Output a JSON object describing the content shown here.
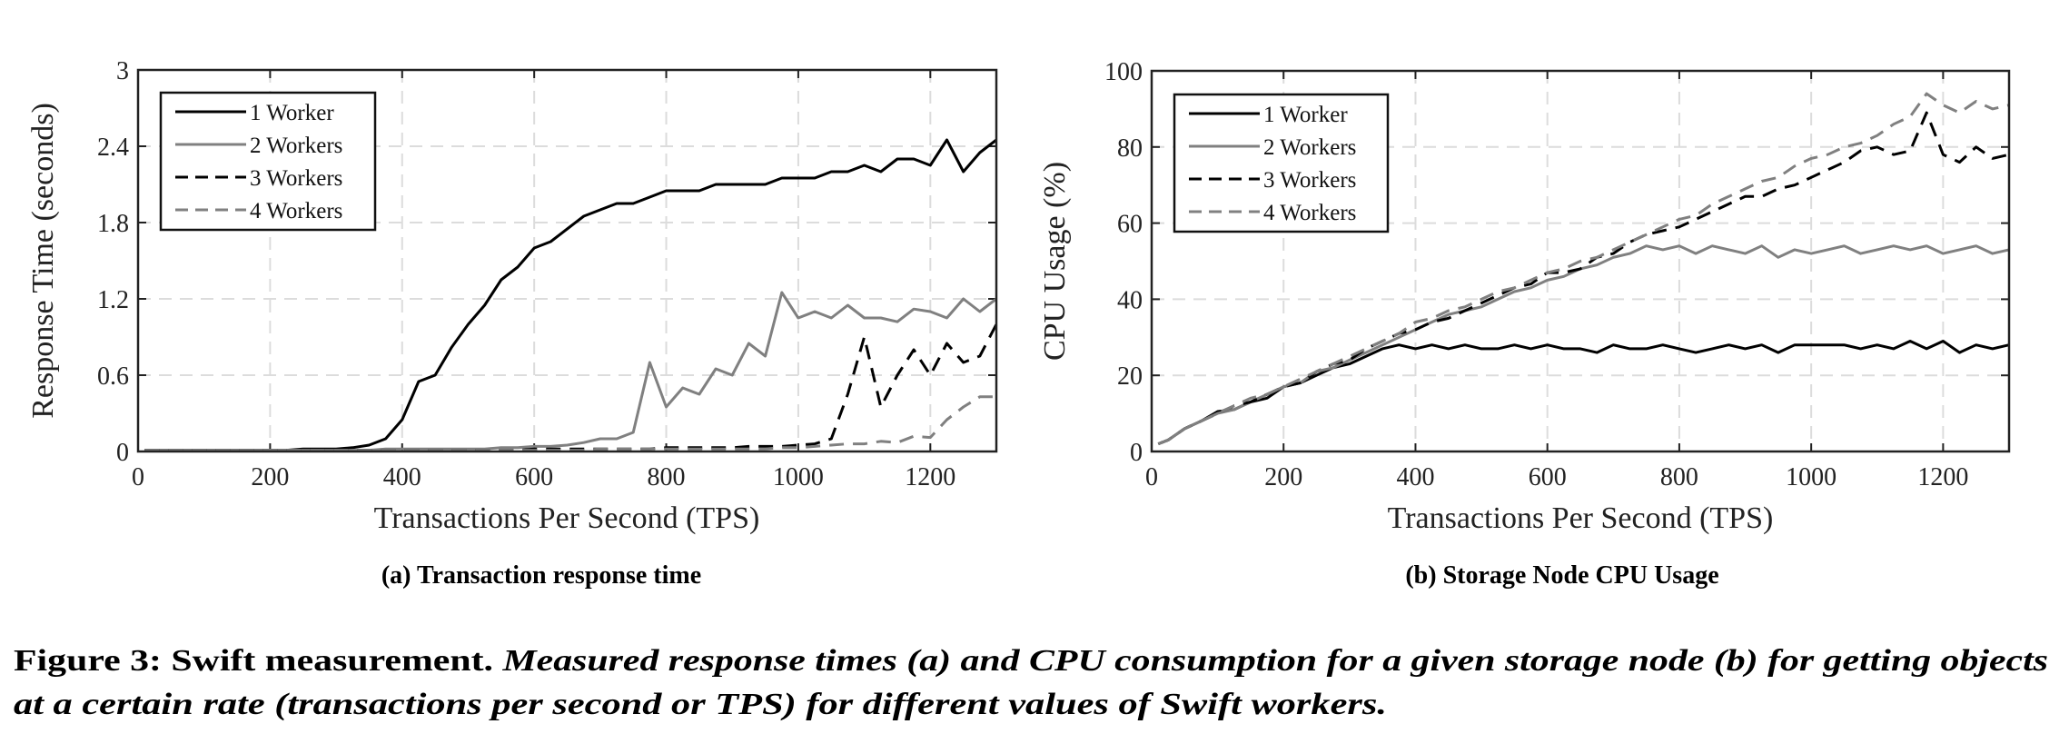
{
  "chart_data": [
    {
      "type": "line",
      "subcaption": "(a) Transaction response time",
      "xlabel": "Transactions Per Second (TPS)",
      "ylabel": "Response Time (seconds)",
      "xlim": [
        0,
        1300
      ],
      "ylim": [
        0,
        3
      ],
      "xticks": [
        0,
        200,
        400,
        600,
        800,
        1000,
        1200
      ],
      "xtick_labels": [
        "0",
        "200",
        "400",
        "600",
        "800",
        "1000",
        "1200"
      ],
      "yticks": [
        0,
        0.6,
        1.2,
        1.8,
        2.4,
        3
      ],
      "ytick_labels": [
        "0",
        "0.6",
        "1.2",
        "1.8",
        "2.4",
        "3"
      ],
      "grid": true,
      "legend_position": "top-left",
      "x": [
        10,
        25,
        50,
        75,
        100,
        125,
        150,
        175,
        200,
        225,
        250,
        275,
        300,
        325,
        350,
        375,
        400,
        425,
        450,
        475,
        500,
        525,
        550,
        575,
        600,
        625,
        650,
        675,
        700,
        725,
        750,
        775,
        800,
        825,
        850,
        875,
        900,
        925,
        950,
        975,
        1000,
        1025,
        1050,
        1075,
        1100,
        1125,
        1150,
        1175,
        1200,
        1225,
        1250,
        1275,
        1300
      ],
      "series": [
        {
          "name": "1 Worker",
          "color": "#000000",
          "dashed": false,
          "values": [
            0.01,
            0.01,
            0.01,
            0.01,
            0.01,
            0.01,
            0.01,
            0.01,
            0.01,
            0.01,
            0.02,
            0.02,
            0.02,
            0.03,
            0.05,
            0.1,
            0.25,
            0.55,
            0.6,
            0.82,
            1.0,
            1.15,
            1.35,
            1.45,
            1.6,
            1.65,
            1.75,
            1.85,
            1.9,
            1.95,
            1.95,
            2.0,
            2.05,
            2.05,
            2.05,
            2.1,
            2.1,
            2.1,
            2.1,
            2.15,
            2.15,
            2.15,
            2.2,
            2.2,
            2.25,
            2.2,
            2.3,
            2.3,
            2.25,
            2.45,
            2.2,
            2.35,
            2.45
          ]
        },
        {
          "name": "2 Workers",
          "color": "#808080",
          "dashed": false,
          "values": [
            0.01,
            0.01,
            0.01,
            0.01,
            0.01,
            0.01,
            0.01,
            0.01,
            0.01,
            0.01,
            0.01,
            0.01,
            0.01,
            0.01,
            0.01,
            0.02,
            0.02,
            0.02,
            0.02,
            0.02,
            0.02,
            0.02,
            0.03,
            0.03,
            0.04,
            0.04,
            0.05,
            0.07,
            0.1,
            0.1,
            0.15,
            0.7,
            0.35,
            0.5,
            0.45,
            0.65,
            0.6,
            0.85,
            0.75,
            1.25,
            1.05,
            1.1,
            1.05,
            1.15,
            1.05,
            1.05,
            1.02,
            1.12,
            1.1,
            1.05,
            1.2,
            1.1,
            1.2
          ]
        },
        {
          "name": "3 Workers",
          "color": "#000000",
          "dashed": true,
          "values": [
            0.01,
            0.01,
            0.01,
            0.01,
            0.01,
            0.01,
            0.01,
            0.01,
            0.01,
            0.01,
            0.01,
            0.01,
            0.01,
            0.01,
            0.01,
            0.01,
            0.01,
            0.01,
            0.01,
            0.01,
            0.01,
            0.01,
            0.01,
            0.01,
            0.02,
            0.02,
            0.02,
            0.02,
            0.02,
            0.02,
            0.02,
            0.02,
            0.03,
            0.03,
            0.03,
            0.03,
            0.03,
            0.04,
            0.04,
            0.04,
            0.05,
            0.06,
            0.1,
            0.45,
            0.9,
            0.35,
            0.6,
            0.8,
            0.6,
            0.85,
            0.7,
            0.75,
            1.0
          ]
        },
        {
          "name": "4 Workers",
          "color": "#808080",
          "dashed": true,
          "values": [
            0.01,
            0.01,
            0.01,
            0.01,
            0.01,
            0.01,
            0.01,
            0.01,
            0.01,
            0.01,
            0.01,
            0.01,
            0.01,
            0.01,
            0.01,
            0.01,
            0.01,
            0.01,
            0.01,
            0.01,
            0.01,
            0.01,
            0.01,
            0.01,
            0.01,
            0.01,
            0.01,
            0.01,
            0.02,
            0.02,
            0.02,
            0.02,
            0.02,
            0.02,
            0.02,
            0.02,
            0.02,
            0.02,
            0.02,
            0.03,
            0.03,
            0.04,
            0.05,
            0.06,
            0.06,
            0.08,
            0.07,
            0.12,
            0.11,
            0.25,
            0.35,
            0.43,
            0.43
          ]
        }
      ]
    },
    {
      "type": "line",
      "subcaption": "(b) Storage Node CPU Usage",
      "xlabel": "Transactions Per Second (TPS)",
      "ylabel": "CPU Usage (%)",
      "xlim": [
        0,
        1300
      ],
      "ylim": [
        0,
        100
      ],
      "xticks": [
        0,
        200,
        400,
        600,
        800,
        1000,
        1200
      ],
      "xtick_labels": [
        "0",
        "200",
        "400",
        "600",
        "800",
        "1000",
        "1200"
      ],
      "yticks": [
        0,
        20,
        40,
        60,
        80,
        100
      ],
      "ytick_labels": [
        "0",
        "20",
        "40",
        "60",
        "80",
        "100"
      ],
      "grid": true,
      "legend_position": "top-left",
      "x": [
        10,
        25,
        50,
        75,
        100,
        125,
        150,
        175,
        200,
        225,
        250,
        275,
        300,
        325,
        350,
        375,
        400,
        425,
        450,
        475,
        500,
        525,
        550,
        575,
        600,
        625,
        650,
        675,
        700,
        725,
        750,
        775,
        800,
        825,
        850,
        875,
        900,
        925,
        950,
        975,
        1000,
        1025,
        1050,
        1075,
        1100,
        1125,
        1150,
        1175,
        1200,
        1225,
        1250,
        1275,
        1300
      ],
      "series": [
        {
          "name": "1 Worker",
          "color": "#000000",
          "dashed": false,
          "values": [
            2,
            3,
            6,
            8,
            10.5,
            11,
            13,
            14,
            17,
            18,
            20,
            22,
            23,
            25,
            27,
            28,
            27,
            28,
            27,
            28,
            27,
            27,
            28,
            27,
            28,
            27,
            27,
            26,
            28,
            27,
            27,
            28,
            27,
            26,
            27,
            28,
            27,
            28,
            26,
            28,
            28,
            28,
            28,
            27,
            28,
            27,
            29,
            27,
            29,
            26,
            28,
            27,
            28
          ]
        },
        {
          "name": "2 Workers",
          "color": "#808080",
          "dashed": false,
          "values": [
            2,
            3,
            6,
            8,
            10,
            11,
            13,
            15,
            17,
            18,
            21,
            22,
            24,
            26,
            28,
            30,
            32,
            34,
            36,
            37,
            38,
            40,
            42,
            43,
            45,
            46,
            48,
            49,
            51,
            52,
            54,
            53,
            54,
            52,
            54,
            53,
            52,
            54,
            51,
            53,
            52,
            53,
            54,
            52,
            53,
            54,
            53,
            54,
            52,
            53,
            54,
            52,
            53
          ]
        },
        {
          "name": "3 Workers",
          "color": "#000000",
          "dashed": true,
          "values": [
            2,
            3,
            6,
            8,
            10,
            12,
            13,
            15,
            17,
            18,
            21,
            23,
            24,
            27,
            29,
            31,
            32,
            34,
            35,
            37,
            39,
            41,
            43,
            44,
            47,
            47,
            48,
            51,
            52,
            55,
            57,
            58,
            59,
            61,
            63,
            65,
            67,
            67,
            69,
            70,
            72,
            74,
            76,
            79,
            80,
            78,
            79,
            89,
            78,
            76,
            80,
            77,
            78
          ]
        },
        {
          "name": "4 Workers",
          "color": "#808080",
          "dashed": true,
          "values": [
            2,
            3,
            6,
            8,
            10,
            12,
            14,
            15,
            17,
            19,
            21,
            23,
            25,
            27,
            29,
            31,
            34,
            35,
            37,
            38,
            40,
            42,
            43,
            45,
            47,
            48,
            50,
            51,
            53,
            55,
            57,
            59,
            61,
            62,
            65,
            67,
            69,
            71,
            72,
            75,
            77,
            78,
            80,
            81,
            83,
            86,
            88,
            94,
            91,
            89,
            92,
            90,
            91
          ]
        }
      ]
    }
  ],
  "caption": {
    "label": "Figure 3: Swift measurement.",
    "line1_italic": "Measured response times (a) and CPU consumption for a given storage node (b) for getting objects",
    "line2_italic": "at a certain rate (transactions per second or TPS) for different values of Swift workers."
  }
}
